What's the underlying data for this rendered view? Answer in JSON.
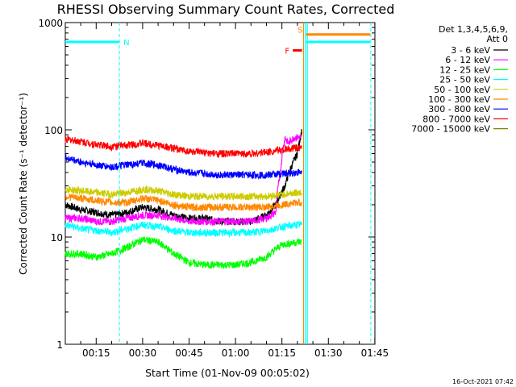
{
  "chart_data": {
    "type": "line",
    "title": "RHESSI Observing Summary Count Rates, Corrected",
    "xlabel": "Start Time (01-Nov-09 00:05:02)",
    "ylabel": "Corrected Count Rate (s⁻¹ detector⁻¹)",
    "yscale": "log",
    "ylim": [
      1,
      1000
    ],
    "xlim_minutes": [
      5.03,
      105.03
    ],
    "x_ticks": [
      {
        "min": 15,
        "label": "00:15"
      },
      {
        "min": 30,
        "label": "00:30"
      },
      {
        "min": 45,
        "label": "00:45"
      },
      {
        "min": 60,
        "label": "01:00"
      },
      {
        "min": 75,
        "label": "01:15"
      },
      {
        "min": 90,
        "label": "01:30"
      },
      {
        "min": 105,
        "label": "01:45"
      }
    ],
    "y_ticks": [
      {
        "value": 1,
        "label": "1"
      },
      {
        "value": 10,
        "label": "10"
      },
      {
        "value": 100,
        "label": "100"
      },
      {
        "value": 1000,
        "label": "1000"
      }
    ],
    "legend": {
      "placement": "right",
      "header1": "Det 1,3,4,5,6,9,",
      "header2": "Att 0"
    },
    "series": [
      {
        "name": "3 - 6 keV",
        "color": "#000000",
        "x": [
          5.03,
          10,
          15,
          20,
          25,
          30,
          35,
          40,
          45,
          50,
          55,
          60,
          65,
          70,
          73,
          76,
          78,
          80,
          81.5
        ],
        "y": [
          20,
          18,
          17,
          16,
          17,
          19,
          18,
          16,
          15,
          15,
          14,
          14,
          14,
          16,
          20,
          30,
          45,
          60,
          100
        ]
      },
      {
        "name": "6 - 12 keV",
        "color": "#ff00ff",
        "x": [
          5.03,
          10,
          15,
          20,
          25,
          30,
          35,
          40,
          45,
          50,
          55,
          60,
          65,
          70,
          73,
          74.5,
          76,
          77,
          79,
          81.5
        ],
        "y": [
          15,
          15,
          14,
          14,
          15,
          16,
          16,
          15,
          14,
          14,
          14,
          14,
          14,
          15,
          17,
          40,
          85,
          75,
          85,
          85
        ]
      },
      {
        "name": "12 - 25 keV",
        "color": "#00ff00",
        "x": [
          5.03,
          10,
          15,
          20,
          25,
          30,
          35,
          40,
          45,
          50,
          55,
          60,
          65,
          70,
          75,
          80,
          81.5
        ],
        "y": [
          7,
          7,
          6.5,
          7,
          8,
          9.5,
          9,
          7,
          5.8,
          5.5,
          5.5,
          5.5,
          5.8,
          6.5,
          8.5,
          9,
          9
        ]
      },
      {
        "name": "25 - 50 keV",
        "color": "#00ffff",
        "x": [
          5.03,
          10,
          15,
          20,
          25,
          30,
          35,
          40,
          45,
          50,
          55,
          60,
          65,
          70,
          75,
          80,
          81.5
        ],
        "y": [
          13,
          12,
          11.5,
          11,
          12,
          13,
          12.5,
          11.5,
          11,
          11,
          11,
          11,
          11,
          11.5,
          12.5,
          13,
          13
        ]
      },
      {
        "name": "50 - 100 keV",
        "color": "#cccc00",
        "x": [
          5.03,
          10,
          15,
          20,
          25,
          30,
          35,
          40,
          45,
          50,
          55,
          60,
          65,
          70,
          75,
          80,
          81.5
        ],
        "y": [
          28,
          27,
          26,
          25,
          26,
          28,
          27,
          25,
          24,
          24,
          24,
          24,
          24,
          24,
          25,
          26,
          26
        ]
      },
      {
        "name": "100 - 300 keV",
        "color": "#ff8800",
        "x": [
          5.03,
          10,
          15,
          20,
          25,
          30,
          35,
          40,
          45,
          50,
          55,
          60,
          65,
          70,
          75,
          80,
          81.5
        ],
        "y": [
          24,
          23,
          22,
          21,
          21,
          23,
          22,
          20,
          19,
          19,
          19,
          19,
          19,
          19,
          20,
          21,
          21
        ]
      },
      {
        "name": "300 - 800 keV",
        "color": "#0000ff",
        "x": [
          5.03,
          10,
          15,
          20,
          25,
          30,
          35,
          40,
          45,
          50,
          55,
          60,
          65,
          70,
          75,
          80,
          81.5
        ],
        "y": [
          55,
          50,
          47,
          45,
          47,
          49,
          47,
          43,
          40,
          39,
          38,
          38,
          38,
          38,
          39,
          40,
          40
        ]
      },
      {
        "name": "800 - 7000 keV",
        "color": "#ff0000",
        "x": [
          5.03,
          10,
          15,
          20,
          25,
          30,
          35,
          40,
          45,
          50,
          55,
          60,
          65,
          70,
          75,
          80,
          81.5
        ],
        "y": [
          82,
          78,
          73,
          70,
          72,
          75,
          72,
          67,
          63,
          61,
          60,
          60,
          60,
          62,
          65,
          68,
          68
        ]
      },
      {
        "name": "7000 - 15000 keV",
        "color": "#808000",
        "x": [],
        "y": []
      }
    ],
    "annotations": [
      {
        "label": "N",
        "color": "#00ffff",
        "x_start": 5.03,
        "x_end": 22.5,
        "y": 660
      },
      {
        "label": "F",
        "color": "#ff0000",
        "x_start": 78.5,
        "x_end": 81.5,
        "y": 550
      },
      {
        "label": "S",
        "color": "#ff8800",
        "x_start": 82.8,
        "x_end": 103.5,
        "y": 775
      },
      {
        "label": "",
        "color": "#00ffff",
        "x_start": 82.8,
        "x_end": 103.5,
        "y": 660
      }
    ],
    "vlines_solid": [
      {
        "x": 82.0,
        "color": "#ff8800"
      },
      {
        "x": 82.6,
        "color": "#00ffff"
      },
      {
        "x": 83.2,
        "color": "#00ffff"
      }
    ],
    "vlines_dashed": [
      {
        "x": 22.5,
        "color": "#00ffff"
      },
      {
        "x": 103.7,
        "color": "#00ffff"
      }
    ]
  },
  "footer": {
    "timestamp": "16-Oct-2021 07:42"
  }
}
